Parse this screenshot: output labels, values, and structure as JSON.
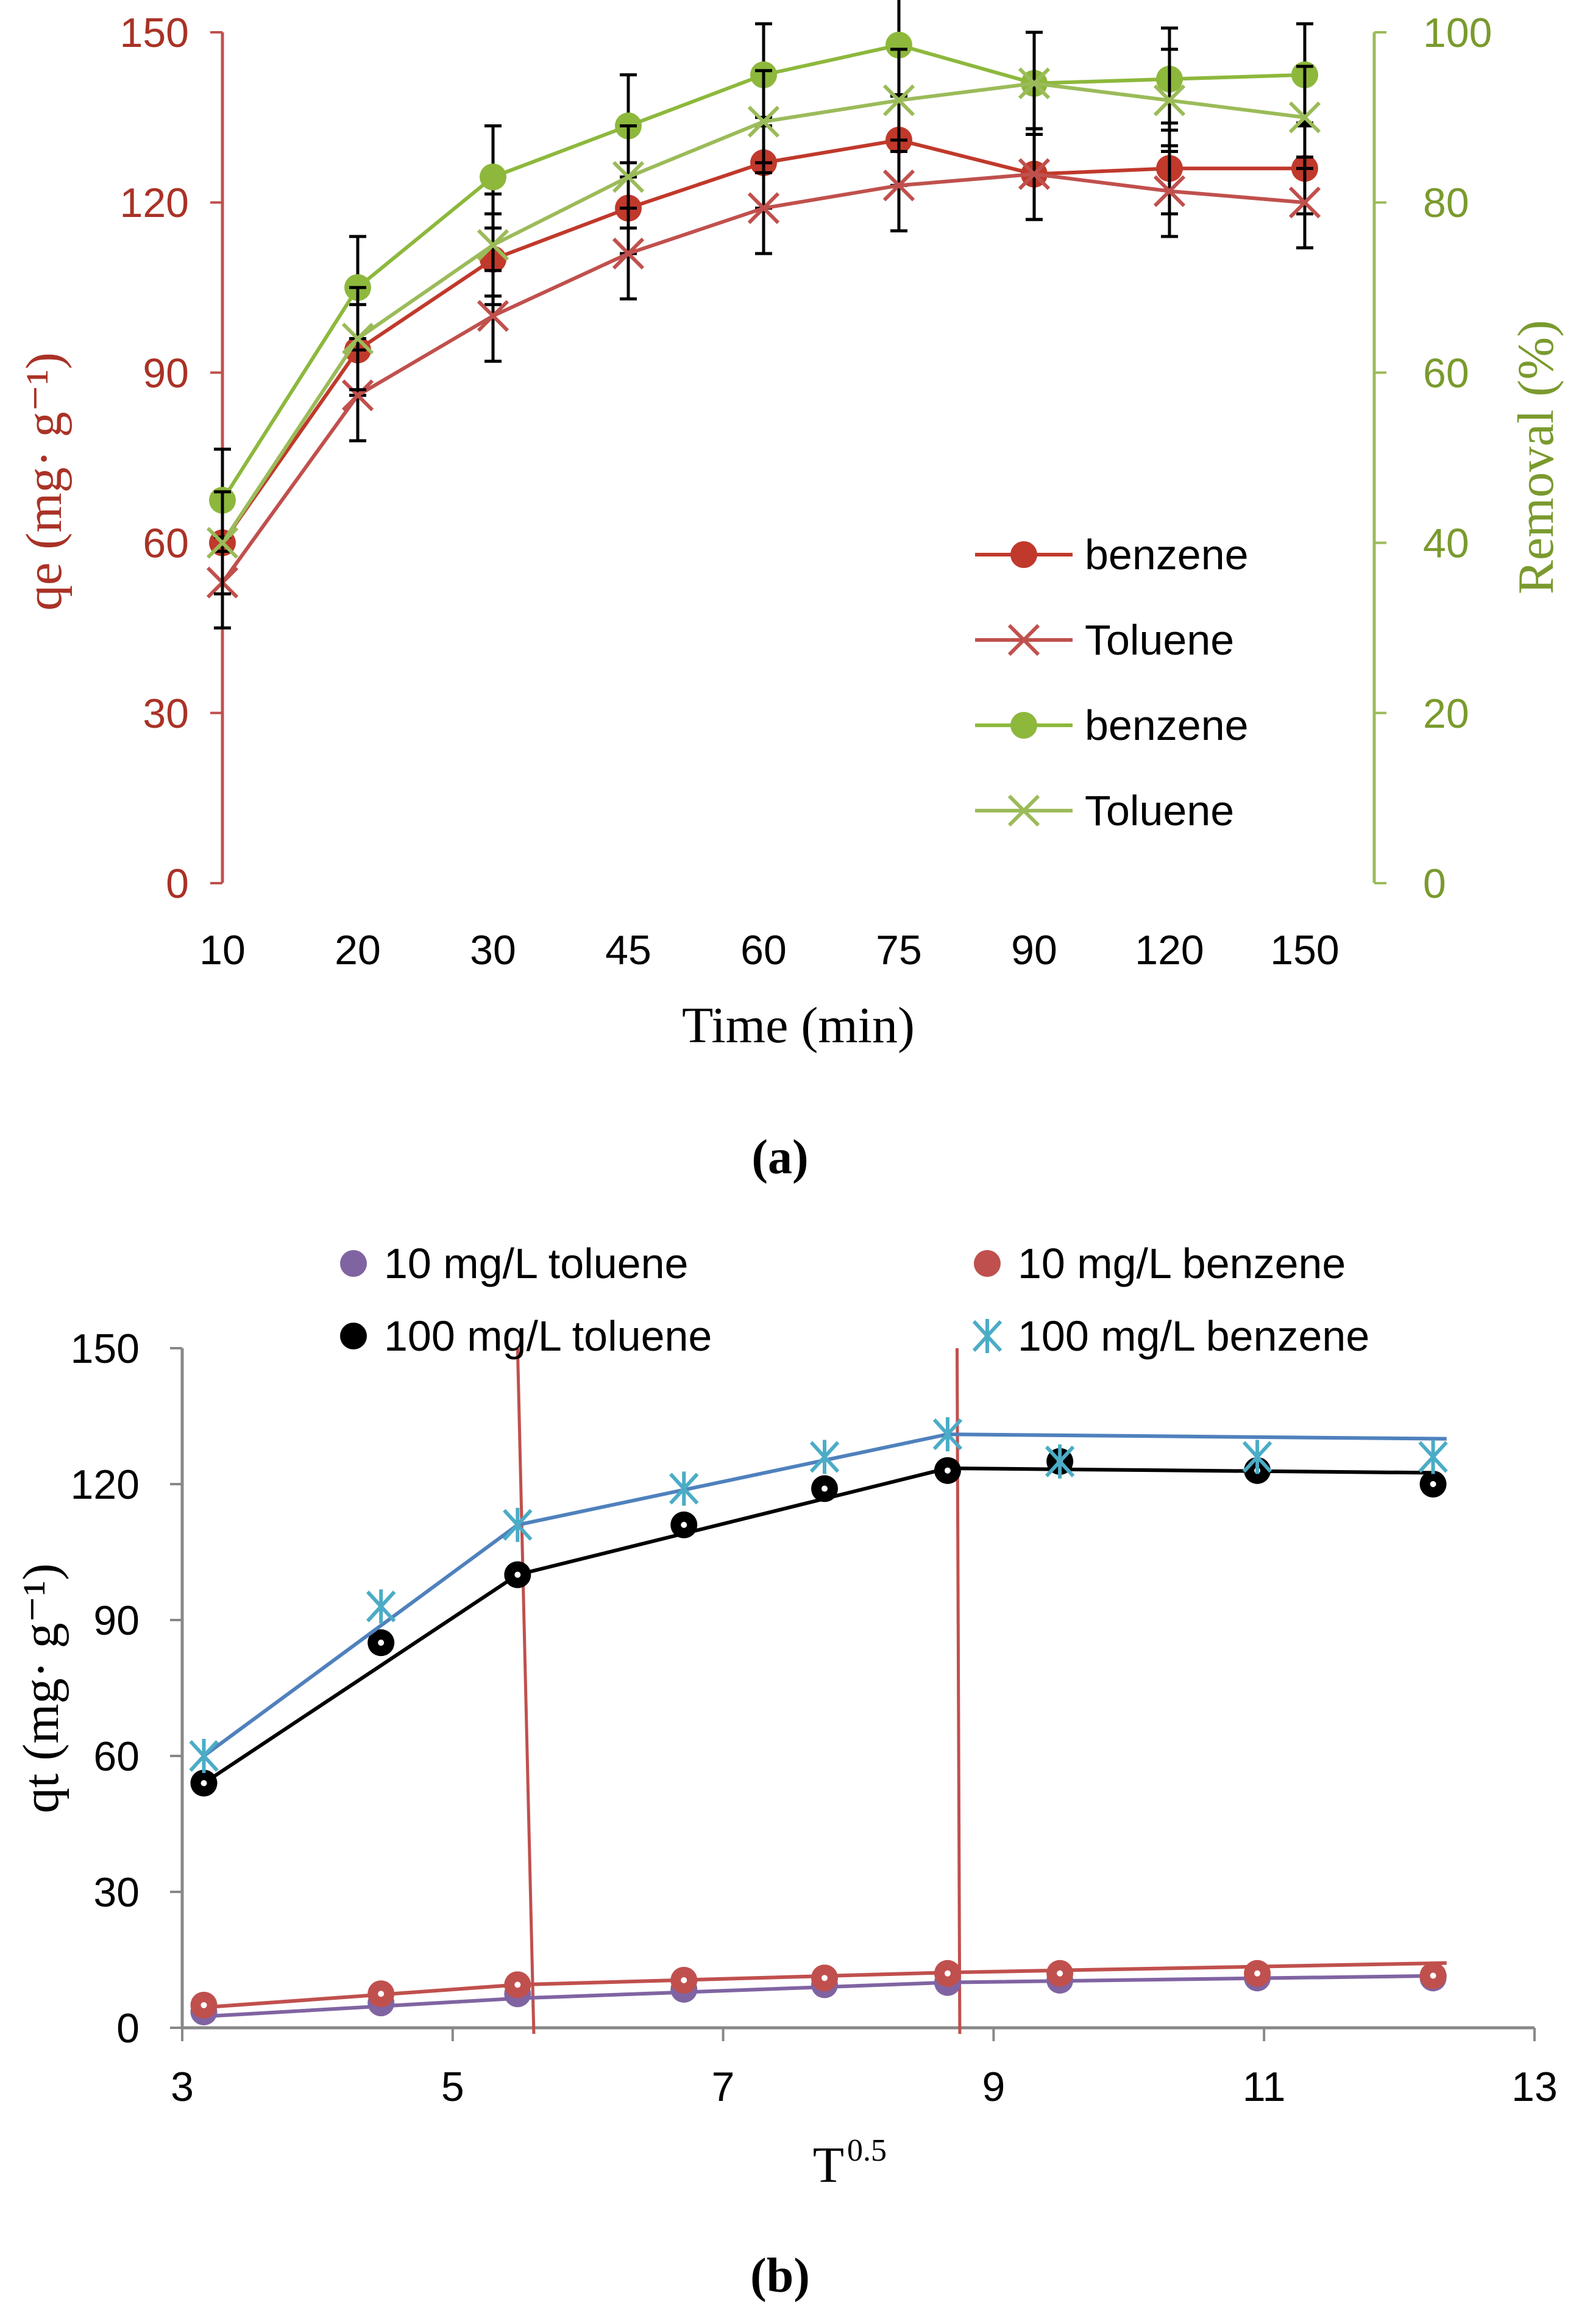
{
  "chart_data": [
    {
      "type": "line",
      "panel_label": "(a)",
      "xlabel": "Time (min)",
      "ylabel_left": "qe (mg· g⁻¹)",
      "ylabel_right": "Removal (%)",
      "categories": [
        "10",
        "20",
        "30",
        "45",
        "60",
        "75",
        "90",
        "120",
        "150"
      ],
      "ylim_left": [
        0,
        150
      ],
      "yticks_left": [
        0,
        30,
        60,
        90,
        120,
        150
      ],
      "ylim_right": [
        0,
        100
      ],
      "yticks_right": [
        0,
        20,
        40,
        60,
        80,
        100
      ],
      "legend_position": "bottom-right",
      "series": [
        {
          "name": "benzene",
          "axis": "left",
          "marker": "circle",
          "color": "#C0392B",
          "values": [
            60,
            94,
            110,
            119,
            127,
            131,
            125,
            126,
            126
          ],
          "error": [
            0,
            8,
            8,
            8,
            8,
            8,
            8,
            8,
            8
          ]
        },
        {
          "name": "Toluene",
          "axis": "left",
          "marker": "x",
          "color": "#C0504D",
          "values": [
            53,
            86,
            100,
            111,
            119,
            123,
            125,
            122,
            120
          ],
          "error": [
            8,
            8,
            8,
            8,
            8,
            8,
            8,
            8,
            8
          ]
        },
        {
          "name": "benzene",
          "axis": "right",
          "marker": "circle",
          "color": "#8DB83C",
          "values": [
            45,
            70,
            83,
            89,
            95,
            98.5,
            94,
            94.5,
            95
          ],
          "error": [
            6,
            6,
            6,
            6,
            6,
            6,
            6,
            6,
            6
          ]
        },
        {
          "name": "Toluene",
          "axis": "right",
          "marker": "x",
          "color": "#9BBB59",
          "values": [
            40,
            64,
            75,
            83,
            89.5,
            92,
            94,
            92,
            90
          ],
          "error": [
            6,
            6,
            6,
            6,
            6,
            6,
            6,
            6,
            6
          ]
        }
      ]
    },
    {
      "type": "scatter",
      "panel_label": "(b)",
      "xlabel": "T",
      "xlabel_sup": "0.5",
      "ylabel": "qt (mg· g⁻¹)",
      "xlim": [
        3,
        13
      ],
      "xticks": [
        3,
        5,
        7,
        9,
        11,
        13
      ],
      "ylim": [
        0,
        150
      ],
      "yticks": [
        0,
        30,
        60,
        90,
        120,
        150
      ],
      "legend_position": "top",
      "x": [
        3.16,
        4.47,
        5.48,
        6.71,
        7.75,
        8.66,
        9.49,
        10.95,
        12.25
      ],
      "series": [
        {
          "name": "10 mg/L toluene",
          "marker": "circle",
          "color": "#8064A2",
          "values": [
            3.5,
            5.5,
            7.5,
            8.5,
            9.5,
            10,
            10.5,
            11,
            11
          ],
          "fit": [
            [
              3.16,
              2.5
            ],
            [
              5.48,
              6.5
            ],
            [
              8.66,
              10
            ],
            [
              12.35,
              11.5
            ]
          ]
        },
        {
          "name": "10 mg/L benzene",
          "marker": "circle",
          "color": "#C0504D",
          "values": [
            5,
            7.5,
            9.5,
            10.5,
            11,
            12,
            12,
            12,
            11.5
          ],
          "fit": [
            [
              3.16,
              4.5
            ],
            [
              5.48,
              9.5
            ],
            [
              8.66,
              12.2
            ],
            [
              12.35,
              14.3
            ]
          ]
        },
        {
          "name": "100 mg/L toluene",
          "marker": "circle",
          "color": "#000000",
          "values": [
            54,
            85,
            100,
            111,
            119,
            123,
            125,
            123,
            120
          ],
          "fit": [
            [
              3.16,
              54
            ],
            [
              5.48,
              100
            ],
            [
              8.66,
              123.5
            ],
            [
              12.25,
              122.5
            ]
          ]
        },
        {
          "name": "100 mg/L benzene",
          "marker": "asterisk",
          "color": "#4BACC6",
          "values": [
            60,
            93,
            111,
            119,
            126,
            131,
            125,
            126,
            126
          ],
          "fit": [
            [
              3.16,
              60
            ],
            [
              5.48,
              111
            ],
            [
              8.66,
              131
            ],
            [
              12.35,
              130
            ]
          ],
          "fit_color": "#4F81BD"
        }
      ],
      "vertical_lines": [
        {
          "x_top": 5.48,
          "x_bottom": 5.6,
          "color": "#C0504D"
        },
        {
          "x_top": 8.73,
          "x_bottom": 8.75,
          "color": "#C0504D"
        }
      ]
    }
  ]
}
